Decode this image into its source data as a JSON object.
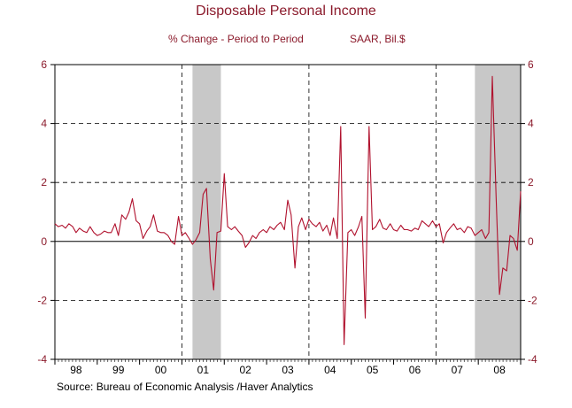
{
  "chart_data": {
    "type": "line",
    "title": "Disposable Personal Income",
    "subtitle_left": "% Change - Period to Period",
    "subtitle_right": "SAAR, Bil.$",
    "source": "Source:  Bureau of Economic Analysis /Haver Analytics",
    "x_range": [
      1998.0,
      2009.0
    ],
    "ylim": [
      -4,
      6
    ],
    "y_ticks": [
      6,
      4,
      2,
      0,
      -2,
      -4
    ],
    "x_tick_labels": [
      "98",
      "99",
      "00",
      "01",
      "02",
      "03",
      "04",
      "05",
      "06",
      "07",
      "08"
    ],
    "recessions": [
      [
        2001.25,
        2001.92
      ],
      [
        2007.92,
        2009.0
      ]
    ],
    "vertical_dashed_lines": [
      2001.0,
      2004.0,
      2007.0
    ],
    "grid": "horizontal dashed at ±2, ±4; solid zero line",
    "colors": {
      "line": "#b0112d",
      "text": "#8b1a2b",
      "recession": "#c8c8c8"
    },
    "series": [
      {
        "points": [
          [
            1998.0,
            0.6
          ],
          [
            1998.08,
            0.5
          ],
          [
            1998.17,
            0.55
          ],
          [
            1998.25,
            0.45
          ],
          [
            1998.33,
            0.6
          ],
          [
            1998.42,
            0.5
          ],
          [
            1998.5,
            0.3
          ],
          [
            1998.58,
            0.45
          ],
          [
            1998.67,
            0.35
          ],
          [
            1998.75,
            0.3
          ],
          [
            1998.83,
            0.5
          ],
          [
            1998.92,
            0.3
          ],
          [
            1999.0,
            0.2
          ],
          [
            1999.08,
            0.25
          ],
          [
            1999.17,
            0.35
          ],
          [
            1999.25,
            0.3
          ],
          [
            1999.33,
            0.3
          ],
          [
            1999.42,
            0.6
          ],
          [
            1999.5,
            0.2
          ],
          [
            1999.58,
            0.9
          ],
          [
            1999.67,
            0.75
          ],
          [
            1999.75,
            1.0
          ],
          [
            1999.83,
            1.45
          ],
          [
            1999.92,
            0.7
          ],
          [
            2000.0,
            0.6
          ],
          [
            2000.08,
            0.1
          ],
          [
            2000.17,
            0.35
          ],
          [
            2000.25,
            0.5
          ],
          [
            2000.33,
            0.9
          ],
          [
            2000.42,
            0.35
          ],
          [
            2000.5,
            0.3
          ],
          [
            2000.58,
            0.3
          ],
          [
            2000.67,
            0.2
          ],
          [
            2000.75,
            0.0
          ],
          [
            2000.83,
            -0.1
          ],
          [
            2000.92,
            0.85
          ],
          [
            2001.0,
            0.2
          ],
          [
            2001.08,
            0.3
          ],
          [
            2001.17,
            0.1
          ],
          [
            2001.25,
            -0.1
          ],
          [
            2001.33,
            0.05
          ],
          [
            2001.42,
            0.3
          ],
          [
            2001.5,
            1.6
          ],
          [
            2001.58,
            1.8
          ],
          [
            2001.67,
            -0.6
          ],
          [
            2001.75,
            -1.65
          ],
          [
            2001.83,
            0.3
          ],
          [
            2001.92,
            0.35
          ],
          [
            2002.0,
            2.3
          ],
          [
            2002.08,
            0.5
          ],
          [
            2002.17,
            0.4
          ],
          [
            2002.25,
            0.5
          ],
          [
            2002.33,
            0.35
          ],
          [
            2002.42,
            0.2
          ],
          [
            2002.5,
            -0.2
          ],
          [
            2002.58,
            -0.05
          ],
          [
            2002.67,
            0.2
          ],
          [
            2002.75,
            0.1
          ],
          [
            2002.83,
            0.3
          ],
          [
            2002.92,
            0.4
          ],
          [
            2003.0,
            0.3
          ],
          [
            2003.08,
            0.5
          ],
          [
            2003.17,
            0.4
          ],
          [
            2003.25,
            0.55
          ],
          [
            2003.33,
            0.65
          ],
          [
            2003.42,
            0.4
          ],
          [
            2003.5,
            1.4
          ],
          [
            2003.58,
            0.9
          ],
          [
            2003.67,
            -0.9
          ],
          [
            2003.75,
            0.5
          ],
          [
            2003.83,
            0.8
          ],
          [
            2003.92,
            0.4
          ],
          [
            2004.0,
            0.75
          ],
          [
            2004.08,
            0.6
          ],
          [
            2004.17,
            0.5
          ],
          [
            2004.25,
            0.65
          ],
          [
            2004.33,
            0.35
          ],
          [
            2004.42,
            0.55
          ],
          [
            2004.5,
            0.2
          ],
          [
            2004.58,
            0.8
          ],
          [
            2004.67,
            0.1
          ],
          [
            2004.75,
            3.9
          ],
          [
            2004.83,
            -3.5
          ],
          [
            2004.92,
            0.3
          ],
          [
            2005.0,
            0.4
          ],
          [
            2005.08,
            0.2
          ],
          [
            2005.17,
            0.5
          ],
          [
            2005.25,
            0.85
          ],
          [
            2005.33,
            -2.6
          ],
          [
            2005.42,
            3.9
          ],
          [
            2005.5,
            0.4
          ],
          [
            2005.58,
            0.5
          ],
          [
            2005.67,
            0.75
          ],
          [
            2005.75,
            0.45
          ],
          [
            2005.83,
            0.4
          ],
          [
            2005.92,
            0.6
          ],
          [
            2006.0,
            0.4
          ],
          [
            2006.08,
            0.35
          ],
          [
            2006.17,
            0.55
          ],
          [
            2006.25,
            0.4
          ],
          [
            2006.33,
            0.4
          ],
          [
            2006.42,
            0.35
          ],
          [
            2006.5,
            0.45
          ],
          [
            2006.58,
            0.4
          ],
          [
            2006.67,
            0.7
          ],
          [
            2006.75,
            0.6
          ],
          [
            2006.83,
            0.5
          ],
          [
            2006.92,
            0.7
          ],
          [
            2007.0,
            0.5
          ],
          [
            2007.08,
            0.6
          ],
          [
            2007.17,
            -0.05
          ],
          [
            2007.25,
            0.3
          ],
          [
            2007.33,
            0.45
          ],
          [
            2007.42,
            0.6
          ],
          [
            2007.5,
            0.4
          ],
          [
            2007.58,
            0.45
          ],
          [
            2007.67,
            0.3
          ],
          [
            2007.75,
            0.5
          ],
          [
            2007.83,
            0.45
          ],
          [
            2007.92,
            0.2
          ],
          [
            2008.0,
            0.3
          ],
          [
            2008.08,
            0.4
          ],
          [
            2008.17,
            0.1
          ],
          [
            2008.25,
            0.3
          ],
          [
            2008.33,
            5.6
          ],
          [
            2008.42,
            1.5
          ],
          [
            2008.5,
            -1.8
          ],
          [
            2008.58,
            -0.9
          ],
          [
            2008.67,
            -1.0
          ],
          [
            2008.75,
            0.2
          ],
          [
            2008.83,
            0.1
          ],
          [
            2008.92,
            -0.3
          ],
          [
            2009.0,
            1.7
          ]
        ]
      }
    ]
  }
}
